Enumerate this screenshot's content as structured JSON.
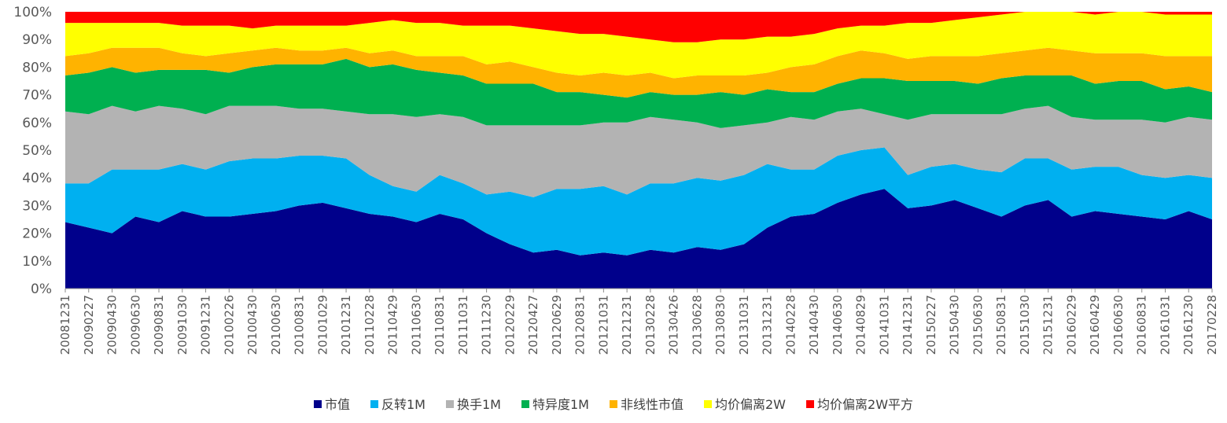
{
  "chart_data": {
    "type": "area",
    "stacked": true,
    "normalized": true,
    "ylim": [
      0,
      100
    ],
    "yticks": [
      "0%",
      "10%",
      "20%",
      "30%",
      "40%",
      "50%",
      "60%",
      "70%",
      "80%",
      "90%",
      "100%"
    ],
    "xtick_labels": [
      "20081231",
      "20090227",
      "20090430",
      "20090630",
      "20090831",
      "20091030",
      "20091231",
      "20100226",
      "20100430",
      "20100630",
      "20100831",
      "20101029",
      "20101231",
      "20110228",
      "20110429",
      "20110630",
      "20110831",
      "20111031",
      "20111230",
      "20120229",
      "20120427",
      "20120629",
      "20120831",
      "20121031",
      "20121231",
      "20130228",
      "20130426",
      "20130628",
      "20130830",
      "20131031",
      "20131231",
      "20140228",
      "20140430",
      "20140630",
      "20140829",
      "20141031",
      "20141231",
      "20150227",
      "20150430",
      "20150630",
      "20150831",
      "20151030",
      "20151231",
      "20160229",
      "20160429",
      "20160630",
      "20160831",
      "20161031",
      "20161230",
      "20170228"
    ],
    "legend_position": "bottom",
    "grid": false,
    "series": [
      {
        "name": "市值",
        "color": "#00008B",
        "cum": [
          24,
          22,
          20,
          26,
          24,
          28,
          26,
          26,
          27,
          28,
          30,
          31,
          29,
          27,
          26,
          24,
          27,
          25,
          20,
          16,
          13,
          14,
          12,
          13,
          12,
          14,
          13,
          15,
          14,
          16,
          22,
          26,
          27,
          31,
          34,
          36,
          29,
          30,
          32,
          29,
          26,
          30,
          32,
          26,
          28,
          27,
          26,
          25,
          28,
          25
        ]
      },
      {
        "name": "反转1M",
        "color": "#00B0F0",
        "cum": [
          38,
          38,
          43,
          43,
          43,
          45,
          43,
          46,
          47,
          47,
          48,
          48,
          47,
          41,
          37,
          35,
          41,
          38,
          34,
          35,
          33,
          36,
          36,
          37,
          34,
          38,
          38,
          40,
          39,
          41,
          45,
          43,
          43,
          48,
          50,
          51,
          41,
          44,
          45,
          43,
          42,
          47,
          47,
          43,
          44,
          44,
          41,
          40,
          41,
          40
        ]
      },
      {
        "name": "换手1M",
        "color": "#B3B3B3",
        "cum": [
          64,
          63,
          66,
          64,
          66,
          65,
          63,
          66,
          66,
          66,
          65,
          65,
          64,
          63,
          63,
          62,
          63,
          62,
          59,
          59,
          59,
          59,
          59,
          60,
          60,
          62,
          61,
          60,
          58,
          59,
          60,
          62,
          61,
          64,
          65,
          63,
          61,
          63,
          63,
          63,
          63,
          65,
          66,
          62,
          61,
          61,
          61,
          60,
          62,
          61
        ]
      },
      {
        "name": "特异度1M",
        "color": "#00B050",
        "cum": [
          77,
          78,
          80,
          78,
          79,
          79,
          79,
          78,
          80,
          81,
          81,
          81,
          83,
          80,
          81,
          79,
          78,
          77,
          74,
          74,
          74,
          71,
          71,
          70,
          69,
          71,
          70,
          70,
          71,
          70,
          72,
          71,
          71,
          74,
          76,
          76,
          75,
          75,
          75,
          74,
          76,
          77,
          77,
          77,
          74,
          75,
          75,
          72,
          73,
          71
        ]
      },
      {
        "name": "非线性市值",
        "color": "#FFB300",
        "cum": [
          84,
          85,
          87,
          87,
          87,
          85,
          84,
          85,
          86,
          87,
          86,
          86,
          87,
          85,
          86,
          84,
          84,
          84,
          81,
          82,
          80,
          78,
          77,
          78,
          77,
          78,
          76,
          77,
          77,
          77,
          78,
          80,
          81,
          84,
          86,
          85,
          83,
          84,
          84,
          84,
          85,
          86,
          87,
          86,
          85,
          85,
          85,
          84,
          84,
          84
        ]
      },
      {
        "name": "均价偏离2W",
        "color": "#FFFF00",
        "cum": [
          96,
          96,
          96,
          96,
          96,
          95,
          95,
          95,
          94,
          95,
          95,
          95,
          95,
          96,
          97,
          96,
          96,
          95,
          95,
          95,
          94,
          93,
          92,
          92,
          91,
          90,
          89,
          89,
          90,
          90,
          91,
          91,
          92,
          94,
          95,
          95,
          96,
          96,
          97,
          98,
          99,
          100,
          100,
          100,
          99,
          100,
          100,
          99,
          99,
          99
        ]
      },
      {
        "name": "均价偏离2W平方",
        "color": "#FF0000",
        "cum": [
          100,
          100,
          100,
          100,
          100,
          100,
          100,
          100,
          100,
          100,
          100,
          100,
          100,
          100,
          100,
          100,
          100,
          100,
          100,
          100,
          100,
          100,
          100,
          100,
          100,
          100,
          100,
          100,
          100,
          100,
          100,
          100,
          100,
          100,
          100,
          100,
          100,
          100,
          100,
          100,
          100,
          100,
          100,
          100,
          100,
          100,
          100,
          100,
          100,
          100
        ]
      }
    ]
  }
}
